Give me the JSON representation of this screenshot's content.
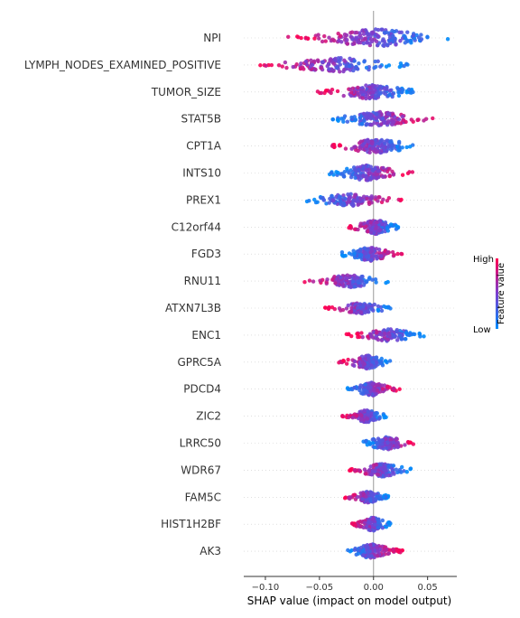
{
  "chart_data": {
    "type": "scatter",
    "subtype": "shap-beeswarm",
    "xlabel": "SHAP value (impact on model output)",
    "xlim": [
      -0.12,
      0.077
    ],
    "xticks": [
      -0.1,
      -0.05,
      0.0,
      0.05
    ],
    "xtick_labels": [
      "−0.10",
      "−0.05",
      "0.00",
      "0.05"
    ],
    "colorbar": {
      "label": "Feature value",
      "high_label": "High",
      "low_label": "Low",
      "colors": [
        "#008bfb",
        "#7a3fd0",
        "#ff0052"
      ]
    },
    "grid": "horizontal dotted row guides",
    "features": [
      {
        "name": "NPI",
        "min": -0.079,
        "max": 0.069,
        "sign": -1,
        "density": 1.0
      },
      {
        "name": "LYMPH_NODES_EXAMINED_POSITIVE",
        "min": -0.108,
        "max": 0.033,
        "sign": -1,
        "density": 0.8
      },
      {
        "name": "TUMOR_SIZE",
        "min": -0.052,
        "max": 0.039,
        "sign": -1,
        "density": 0.85
      },
      {
        "name": "STAT5B",
        "min": -0.038,
        "max": 0.055,
        "sign": 1,
        "density": 0.85
      },
      {
        "name": "CPT1A",
        "min": -0.041,
        "max": 0.039,
        "sign": -1,
        "density": 0.85
      },
      {
        "name": "INTS10",
        "min": -0.041,
        "max": 0.036,
        "sign": 1,
        "density": 0.85
      },
      {
        "name": "PREX1",
        "min": -0.064,
        "max": 0.029,
        "sign": 1,
        "density": 0.7
      },
      {
        "name": "C12orf44",
        "min": -0.024,
        "max": 0.024,
        "sign": -1,
        "density": 0.8
      },
      {
        "name": "FGD3",
        "min": -0.03,
        "max": 0.028,
        "sign": 1,
        "density": 0.8
      },
      {
        "name": "RNU11",
        "min": -0.066,
        "max": 0.014,
        "sign": -1,
        "density": 0.7
      },
      {
        "name": "ATXN7L3B",
        "min": -0.045,
        "max": 0.016,
        "sign": -1,
        "density": 0.65
      },
      {
        "name": "ENC1",
        "min": -0.025,
        "max": 0.047,
        "sign": -1,
        "density": 0.7
      },
      {
        "name": "GPRC5A",
        "min": -0.033,
        "max": 0.017,
        "sign": -1,
        "density": 0.75
      },
      {
        "name": "PDCD4",
        "min": -0.024,
        "max": 0.026,
        "sign": 1,
        "density": 0.75
      },
      {
        "name": "ZIC2",
        "min": -0.029,
        "max": 0.012,
        "sign": -1,
        "density": 0.7
      },
      {
        "name": "LRRC50",
        "min": -0.01,
        "max": 0.039,
        "sign": 1,
        "density": 0.75
      },
      {
        "name": "WDR67",
        "min": -0.024,
        "max": 0.035,
        "sign": -1,
        "density": 0.75
      },
      {
        "name": "FAM5C",
        "min": -0.028,
        "max": 0.014,
        "sign": -1,
        "density": 0.65
      },
      {
        "name": "HIST1H2BF",
        "min": -0.021,
        "max": 0.016,
        "sign": -1,
        "density": 0.75
      },
      {
        "name": "AK3",
        "min": -0.025,
        "max": 0.027,
        "sign": 1,
        "density": 0.8
      }
    ]
  }
}
